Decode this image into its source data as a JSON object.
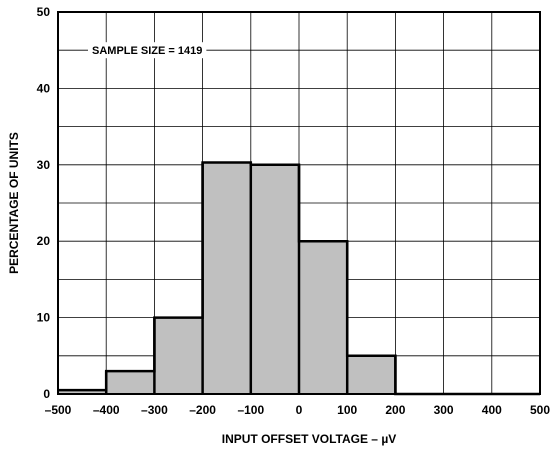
{
  "chart_data": {
    "type": "bar",
    "subtype": "histogram",
    "bins": [
      {
        "from": -500,
        "to": -400,
        "value": 0.5
      },
      {
        "from": -400,
        "to": -300,
        "value": 3
      },
      {
        "from": -300,
        "to": -200,
        "value": 10
      },
      {
        "from": -200,
        "to": -100,
        "value": 30.3
      },
      {
        "from": -100,
        "to": 0,
        "value": 30
      },
      {
        "from": 0,
        "to": 100,
        "value": 20
      },
      {
        "from": 100,
        "to": 200,
        "value": 5
      },
      {
        "from": 200,
        "to": 300,
        "value": 0
      },
      {
        "from": 300,
        "to": 400,
        "value": 0
      },
      {
        "from": 400,
        "to": 500,
        "value": 0
      }
    ],
    "xlabel": "INPUT OFFSET VOLTAGE – µV",
    "ylabel": "PERCENTAGE OF UNITS",
    "xlim": [
      -500,
      500
    ],
    "ylim": [
      0,
      50
    ],
    "xticks": [
      -500,
      -400,
      -300,
      -200,
      -100,
      0,
      100,
      200,
      300,
      400,
      500
    ],
    "xtick_labels": [
      "–500",
      "–400",
      "–300",
      "–200",
      "–100",
      "0",
      "100",
      "200",
      "300",
      "400",
      "500"
    ],
    "yticks": [
      0,
      10,
      20,
      30,
      40,
      50
    ],
    "ytick_labels": [
      "0",
      "10",
      "20",
      "30",
      "40",
      "50"
    ],
    "grid": true,
    "y_minor_step": 5,
    "annotation": "SAMPLE SIZE = 1419",
    "colors": {
      "bar_fill": "#c0c0c0",
      "bar_stroke": "#000000",
      "grid": "#000000",
      "background": "#ffffff"
    }
  }
}
